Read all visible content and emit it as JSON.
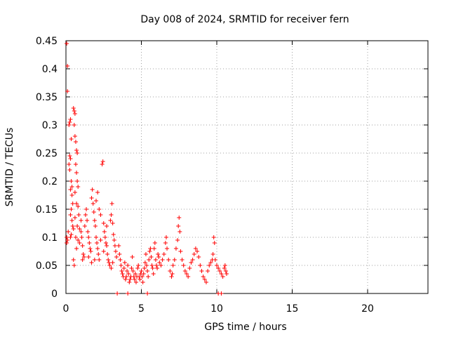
{
  "chart_data": {
    "type": "scatter",
    "title": "Day 008 of 2024, SRMTID for receiver fern",
    "xlabel": "GPS time / hours",
    "ylabel": "SRMTID / TECUs",
    "xlim": [
      0,
      24
    ],
    "ylim": [
      0,
      0.45
    ],
    "xticks": [
      "0",
      "5",
      "10",
      "15",
      "20"
    ],
    "xtick_values": [
      0,
      5,
      10,
      15,
      20
    ],
    "yticks": [
      "0",
      "0.05",
      "0.1",
      "0.15",
      "0.2",
      "0.25",
      "0.3",
      "0.35",
      "0.4",
      "0.45"
    ],
    "ytick_values": [
      0,
      0.05,
      0.1,
      0.15,
      0.2,
      0.25,
      0.3,
      0.35,
      0.4,
      0.45
    ],
    "grid": true,
    "marker": "+",
    "color": "#ff0000",
    "series": [
      {
        "name": "SRMTID",
        "points": [
          [
            0.05,
            0.445
          ],
          [
            0.1,
            0.405
          ],
          [
            0.1,
            0.36
          ],
          [
            0.05,
            0.1
          ],
          [
            0.05,
            0.09
          ],
          [
            0.1,
            0.095
          ],
          [
            0.15,
            0.11
          ],
          [
            0.2,
            0.3
          ],
          [
            0.25,
            0.305
          ],
          [
            0.3,
            0.31
          ],
          [
            0.35,
            0.275
          ],
          [
            0.25,
            0.245
          ],
          [
            0.3,
            0.24
          ],
          [
            0.2,
            0.23
          ],
          [
            0.25,
            0.22
          ],
          [
            0.35,
            0.2
          ],
          [
            0.4,
            0.19
          ],
          [
            0.3,
            0.185
          ],
          [
            0.4,
            0.175
          ],
          [
            0.45,
            0.16
          ],
          [
            0.35,
            0.15
          ],
          [
            0.3,
            0.14
          ],
          [
            0.4,
            0.13
          ],
          [
            0.45,
            0.12
          ],
          [
            0.5,
            0.115
          ],
          [
            0.3,
            0.1
          ],
          [
            0.35,
            0.105
          ],
          [
            0.5,
            0.33
          ],
          [
            0.55,
            0.325
          ],
          [
            0.6,
            0.32
          ],
          [
            0.55,
            0.3
          ],
          [
            0.6,
            0.28
          ],
          [
            0.65,
            0.27
          ],
          [
            0.7,
            0.255
          ],
          [
            0.75,
            0.25
          ],
          [
            0.65,
            0.23
          ],
          [
            0.7,
            0.215
          ],
          [
            0.75,
            0.2
          ],
          [
            0.8,
            0.19
          ],
          [
            0.6,
            0.18
          ],
          [
            0.7,
            0.16
          ],
          [
            0.8,
            0.155
          ],
          [
            0.85,
            0.14
          ],
          [
            0.6,
            0.135
          ],
          [
            0.75,
            0.12
          ],
          [
            0.9,
            0.115
          ],
          [
            1.0,
            0.13
          ],
          [
            0.65,
            0.1
          ],
          [
            0.8,
            0.095
          ],
          [
            0.9,
            0.09
          ],
          [
            0.7,
            0.08
          ],
          [
            0.5,
            0.06
          ],
          [
            0.55,
            0.05
          ],
          [
            1.0,
            0.11
          ],
          [
            1.05,
            0.1
          ],
          [
            1.1,
            0.085
          ],
          [
            1.15,
            0.07
          ],
          [
            1.2,
            0.065
          ],
          [
            1.1,
            0.06
          ],
          [
            1.25,
            0.12
          ],
          [
            1.3,
            0.14
          ],
          [
            1.35,
            0.15
          ],
          [
            1.4,
            0.13
          ],
          [
            1.45,
            0.11
          ],
          [
            1.5,
            0.1
          ],
          [
            1.55,
            0.09
          ],
          [
            1.6,
            0.08
          ],
          [
            1.65,
            0.075
          ],
          [
            1.7,
            0.17
          ],
          [
            1.75,
            0.185
          ],
          [
            1.8,
            0.16
          ],
          [
            1.85,
            0.145
          ],
          [
            1.9,
            0.13
          ],
          [
            1.95,
            0.12
          ],
          [
            2.0,
            0.1
          ],
          [
            2.05,
            0.09
          ],
          [
            2.1,
            0.08
          ],
          [
            2.15,
            0.07
          ],
          [
            2.2,
            0.06
          ],
          [
            1.5,
            0.065
          ],
          [
            1.7,
            0.055
          ],
          [
            1.9,
            0.06
          ],
          [
            2.0,
            0.165
          ],
          [
            2.1,
            0.18
          ],
          [
            2.2,
            0.15
          ],
          [
            2.3,
            0.14
          ],
          [
            2.4,
            0.23
          ],
          [
            2.45,
            0.235
          ],
          [
            2.5,
            0.125
          ],
          [
            2.55,
            0.11
          ],
          [
            2.6,
            0.1
          ],
          [
            2.65,
            0.09
          ],
          [
            2.7,
            0.085
          ],
          [
            2.75,
            0.07
          ],
          [
            2.8,
            0.06
          ],
          [
            2.85,
            0.055
          ],
          [
            2.9,
            0.05
          ],
          [
            2.95,
            0.13
          ],
          [
            3.0,
            0.14
          ],
          [
            3.05,
            0.16
          ],
          [
            3.1,
            0.125
          ],
          [
            3.15,
            0.105
          ],
          [
            3.2,
            0.095
          ],
          [
            3.25,
            0.085
          ],
          [
            3.3,
            0.075
          ],
          [
            3.35,
            0.065
          ],
          [
            2.3,
            0.095
          ],
          [
            2.5,
            0.075
          ],
          [
            2.7,
            0.12
          ],
          [
            3.0,
            0.045
          ],
          [
            3.1,
            0.055
          ],
          [
            3.5,
            0.085
          ],
          [
            3.55,
            0.07
          ],
          [
            3.6,
            0.06
          ],
          [
            3.65,
            0.05
          ],
          [
            3.7,
            0.04
          ],
          [
            3.75,
            0.035
          ],
          [
            3.8,
            0.03
          ],
          [
            3.85,
            0.045
          ],
          [
            3.9,
            0.055
          ],
          [
            3.95,
            0.025
          ],
          [
            4.0,
            0.03
          ],
          [
            4.05,
            0.04
          ],
          [
            4.1,
            0.05
          ],
          [
            4.15,
            0.035
          ],
          [
            4.2,
            0.02
          ],
          [
            4.25,
            0.025
          ],
          [
            4.3,
            0.03
          ],
          [
            4.35,
            0.045
          ],
          [
            4.4,
            0.065
          ],
          [
            4.45,
            0.04
          ],
          [
            4.5,
            0.03
          ],
          [
            4.55,
            0.025
          ],
          [
            4.6,
            0.035
          ],
          [
            4.65,
            0.02
          ],
          [
            4.7,
            0.03
          ],
          [
            4.75,
            0.045
          ],
          [
            4.8,
            0.05
          ],
          [
            4.85,
            0.03
          ],
          [
            4.9,
            0.025
          ],
          [
            4.95,
            0.035
          ],
          [
            5.0,
            0.04
          ],
          [
            5.05,
            0.03
          ],
          [
            5.1,
            0.02
          ],
          [
            5.15,
            0.035
          ],
          [
            5.2,
            0.045
          ],
          [
            5.25,
            0.055
          ],
          [
            5.3,
            0.07
          ],
          [
            5.35,
            0.05
          ],
          [
            5.4,
            0.04
          ],
          [
            5.45,
            0.03
          ],
          [
            5.5,
            0.06
          ],
          [
            5.55,
            0.075
          ],
          [
            5.6,
            0.08
          ],
          [
            5.65,
            0.065
          ],
          [
            5.7,
            0.05
          ],
          [
            5.75,
            0.045
          ],
          [
            5.8,
            0.035
          ],
          [
            5.85,
            0.08
          ],
          [
            5.9,
            0.09
          ],
          [
            5.95,
            0.06
          ],
          [
            6.0,
            0.05
          ],
          [
            6.05,
            0.045
          ],
          [
            6.1,
            0.07
          ],
          [
            6.15,
            0.065
          ],
          [
            6.2,
            0.055
          ],
          [
            6.3,
            0.05
          ],
          [
            6.4,
            0.06
          ],
          [
            6.5,
            0.07
          ],
          [
            6.6,
            0.09
          ],
          [
            6.65,
            0.1
          ],
          [
            6.7,
            0.08
          ],
          [
            6.8,
            0.06
          ],
          [
            6.9,
            0.04
          ],
          [
            7.0,
            0.03
          ],
          [
            7.05,
            0.035
          ],
          [
            7.1,
            0.05
          ],
          [
            7.2,
            0.06
          ],
          [
            7.3,
            0.08
          ],
          [
            7.4,
            0.095
          ],
          [
            7.45,
            0.12
          ],
          [
            7.5,
            0.135
          ],
          [
            7.55,
            0.11
          ],
          [
            7.6,
            0.075
          ],
          [
            7.7,
            0.06
          ],
          [
            7.8,
            0.05
          ],
          [
            7.9,
            0.04
          ],
          [
            8.0,
            0.035
          ],
          [
            8.1,
            0.03
          ],
          [
            8.2,
            0.045
          ],
          [
            8.3,
            0.055
          ],
          [
            8.4,
            0.06
          ],
          [
            8.5,
            0.07
          ],
          [
            8.6,
            0.08
          ],
          [
            8.7,
            0.075
          ],
          [
            8.8,
            0.065
          ],
          [
            8.9,
            0.05
          ],
          [
            9.0,
            0.04
          ],
          [
            9.1,
            0.03
          ],
          [
            9.2,
            0.025
          ],
          [
            9.3,
            0.02
          ],
          [
            9.4,
            0.04
          ],
          [
            9.5,
            0.05
          ],
          [
            9.6,
            0.055
          ],
          [
            9.7,
            0.06
          ],
          [
            9.75,
            0.07
          ],
          [
            9.8,
            0.1
          ],
          [
            9.85,
            0.09
          ],
          [
            9.9,
            0.06
          ],
          [
            10.0,
            0.05
          ],
          [
            10.1,
            0.045
          ],
          [
            10.2,
            0.04
          ],
          [
            10.3,
            0.035
          ],
          [
            10.4,
            0.03
          ],
          [
            10.5,
            0.045
          ],
          [
            10.55,
            0.05
          ],
          [
            10.6,
            0.04
          ],
          [
            10.65,
            0.035
          ],
          [
            3.4,
            0.0
          ],
          [
            4.1,
            0.0
          ],
          [
            5.4,
            0.0
          ],
          [
            10.1,
            0.0
          ],
          [
            10.3,
            0.0
          ]
        ]
      }
    ]
  }
}
